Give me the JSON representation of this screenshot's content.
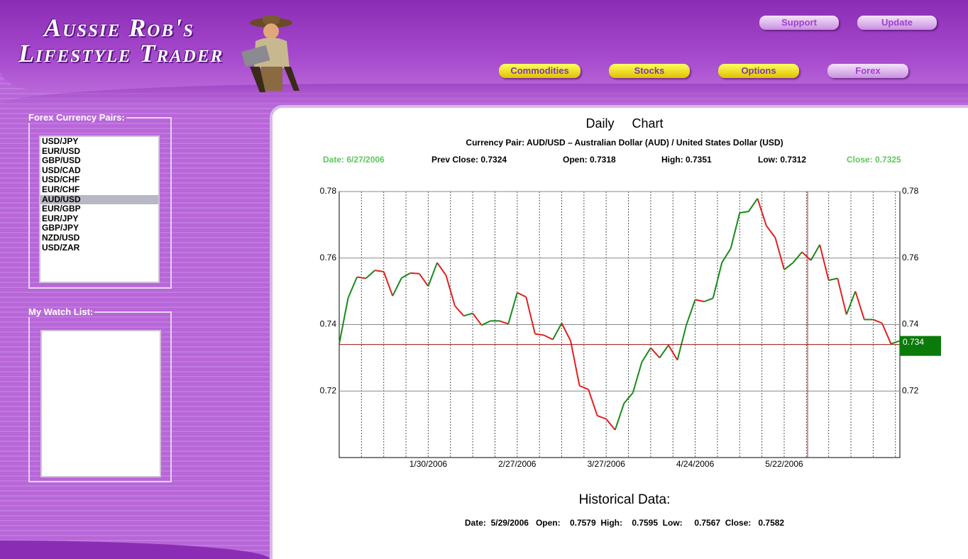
{
  "header": {
    "logo_line1": "Aussie Rob's",
    "logo_line2": "Lifestyle Trader",
    "top_buttons": [
      "Support",
      "Update"
    ],
    "nav_buttons": [
      "Commodities",
      "Stocks",
      "Options",
      "Forex"
    ]
  },
  "sidebar": {
    "pairs_title": "Forex Currency Pairs:",
    "pairs": [
      "USD/JPY",
      "EUR/USD",
      "GBP/USD",
      "USD/CAD",
      "USD/CHF",
      "EUR/CHF",
      "AUD/USD",
      "EUR/GBP",
      "EUR/JPY",
      "GBP/JPY",
      "NZD/USD",
      "USD/ZAR"
    ],
    "selected_index": 6,
    "watch_title": "My Watch List:"
  },
  "panel": {
    "title": "Daily     Chart",
    "subtitle": "Currency Pair: AUD/USD – Australian Dollar (AUD) / United States Dollar (USD)",
    "info": [
      "Date: 6/27/2006",
      "Prev Close: 0.7324",
      "Open: 0.7318",
      "High: 0.7351",
      "Low: 0.7312",
      "Close: 0.7325"
    ],
    "historical_title": "Historical Data:",
    "historical": "Date:  5/29/2006   Open:    0.7579  High:    0.7595  Low:     0.7567  Close:   0.7582"
  },
  "chart_data": {
    "type": "line",
    "categories": [
      null,
      null,
      null,
      null,
      null,
      null,
      null,
      null,
      null,
      null,
      "1/30/2006",
      null,
      null,
      null,
      null,
      null,
      null,
      null,
      null,
      null,
      "2/27/2006",
      null,
      null,
      null,
      null,
      null,
      null,
      null,
      null,
      null,
      "3/27/2006",
      null,
      null,
      null,
      null,
      null,
      null,
      null,
      null,
      null,
      "4/24/2006",
      null,
      null,
      null,
      null,
      null,
      null,
      null,
      null,
      null,
      "5/22/2006",
      null,
      null,
      null,
      null,
      null,
      null,
      null,
      null,
      null,
      null,
      null,
      null,
      null
    ],
    "values": [
      0.7342,
      0.748,
      0.7543,
      0.7539,
      0.7563,
      0.7559,
      0.7486,
      0.754,
      0.7555,
      0.7553,
      0.7515,
      0.7586,
      0.7548,
      0.7456,
      0.7426,
      0.7434,
      0.7398,
      0.7411,
      0.7411,
      0.7402,
      0.7496,
      0.7483,
      0.7372,
      0.7368,
      0.7355,
      0.7404,
      0.7351,
      0.7216,
      0.7205,
      0.7126,
      0.7116,
      0.7083,
      0.7163,
      0.7195,
      0.7287,
      0.733,
      0.73,
      0.7338,
      0.7293,
      0.7398,
      0.7475,
      0.7469,
      0.7479,
      0.7586,
      0.7629,
      0.7736,
      0.774,
      0.7779,
      0.7697,
      0.7661,
      0.7565,
      0.7586,
      0.7618,
      0.7593,
      0.764,
      0.7533,
      0.7539,
      0.743,
      0.75,
      0.7415,
      0.7415,
      0.7404,
      0.7342,
      0.7351
    ],
    "up_color": "#1a8a1a",
    "down_color": "#e02020",
    "ylim": [
      0.7,
      0.78
    ],
    "yticks": [
      0.72,
      0.74,
      0.76,
      0.78
    ],
    "grid": true,
    "price_line": 0.734,
    "price_label": "0.734",
    "price_line_color": "#a01010",
    "price_label_color": "#0a7a0a"
  }
}
